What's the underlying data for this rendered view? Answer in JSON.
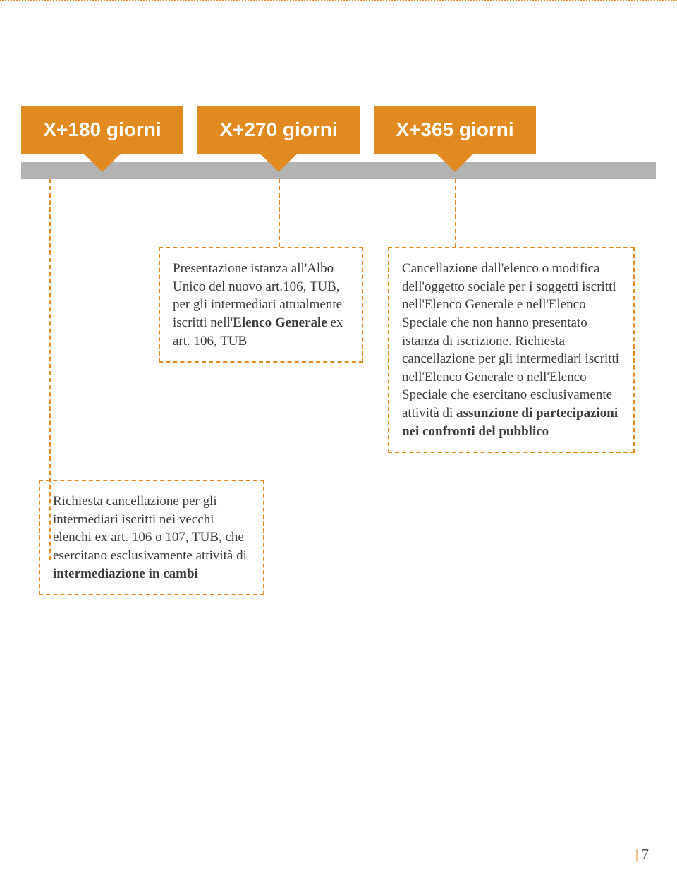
{
  "colors": {
    "accent": "#e08a1f",
    "bar": "#b3b3b3",
    "text": "#3a3a3a"
  },
  "dotted_top_color": "#e08a1f",
  "timeline": {
    "markers": [
      {
        "label": "X+180 giorni"
      },
      {
        "label": "X+270 giorni"
      },
      {
        "label": "X+365 giorni"
      }
    ],
    "bar_color": "#b3b3b3",
    "marker_color": "#e08a1f"
  },
  "boxes": {
    "box1": {
      "html": "Presentazione istanza all'Albo Unico del nuovo art.106, TUB, per gli intermediari attualmente iscritti nell'<b>Elenco Generale</b> ex art. 106, TUB"
    },
    "box2": {
      "html": "Richiesta cancellazione per gli intermediari iscritti nei vecchi elenchi ex art. 106 o 107, TUB, che esercitano esclusivamente attività di <b>intermediazione in cambi</b>"
    },
    "box3": {
      "html": "Cancellazione dall'elenco o modifica dell'oggetto sociale per i soggetti iscritti nell'Elenco Generale e nell'Elenco Speciale che non hanno presentato istanza di iscrizione. Richiesta cancellazione per gli intermediari iscritti nell'Elenco Generale o nell'Elenco Speciale che esercitano esclusivamente attività di <b>assunzione di partecipazioni nei confronti del pubblico</b>"
    }
  },
  "page_number": "7"
}
